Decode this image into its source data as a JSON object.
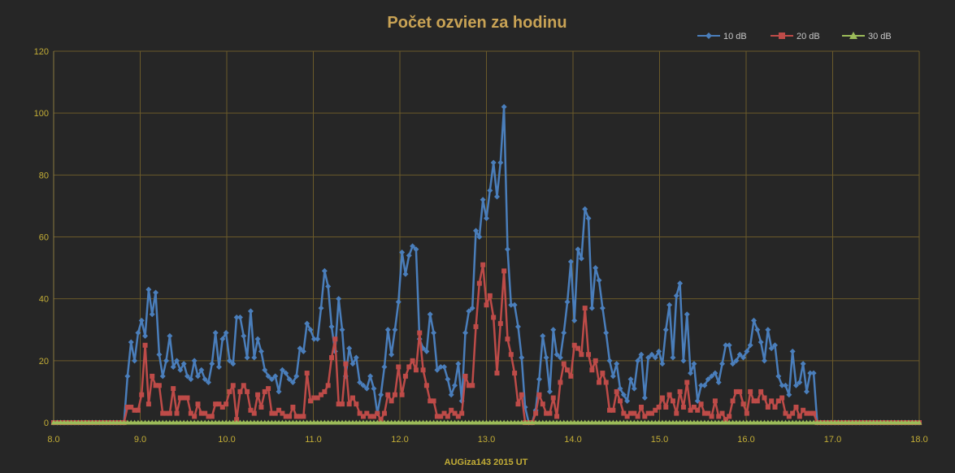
{
  "chart_data": {
    "type": "line",
    "title": "Počet ozvien za hodinu",
    "xlabel": "AUGiza143  2015  UT",
    "ylabel": "",
    "xlim": [
      8.0,
      18.0
    ],
    "ylim": [
      0,
      120
    ],
    "x_ticks": [
      "8.0",
      "9.0",
      "10.0",
      "11.0",
      "12.0",
      "13.0",
      "14.0",
      "15.0",
      "16.0",
      "17.0",
      "18.0"
    ],
    "y_ticks": [
      "0",
      "20",
      "40",
      "60",
      "80",
      "100",
      "120"
    ],
    "grid": true,
    "legend_position": "top-right",
    "x_start": 8.0,
    "x_step": 0.04166,
    "series": [
      {
        "name": "10 dB",
        "color": "#4a7ebb",
        "marker": "diamond",
        "values": [
          0,
          0,
          0,
          0,
          0,
          0,
          0,
          0,
          0,
          0,
          0,
          0,
          0,
          0,
          0,
          0,
          0,
          0,
          0,
          0,
          0,
          15,
          26,
          20,
          29,
          33,
          28,
          43,
          35,
          42,
          22,
          15,
          20,
          28,
          18,
          20,
          17,
          19,
          15,
          14,
          20,
          15,
          17,
          14,
          13,
          19,
          29,
          18,
          27,
          29,
          20,
          19,
          34,
          34,
          28,
          21,
          36,
          21,
          27,
          23,
          17,
          15,
          14,
          15,
          10,
          17,
          16,
          14,
          13,
          15,
          24,
          23,
          32,
          30,
          27,
          27,
          37,
          49,
          44,
          31,
          23,
          40,
          30,
          15,
          24,
          19,
          21,
          13,
          12,
          11,
          15,
          11,
          3,
          9,
          18,
          30,
          22,
          30,
          39,
          55,
          48,
          54,
          57,
          56,
          27,
          24,
          23,
          35,
          29,
          17,
          18,
          18,
          14,
          9,
          12,
          19,
          7,
          29,
          36,
          37,
          62,
          60,
          72,
          66,
          75,
          84,
          73,
          84,
          102,
          56,
          38,
          38,
          31,
          21,
          5,
          0,
          0,
          4,
          14,
          28,
          21,
          10,
          30,
          22,
          21,
          29,
          39,
          52,
          33,
          56,
          53,
          69,
          66,
          37,
          50,
          46,
          37,
          29,
          20,
          15,
          19,
          11,
          9,
          7,
          14,
          11,
          20,
          22,
          8,
          21,
          22,
          21,
          23,
          19,
          30,
          38,
          21,
          41,
          45,
          20,
          35,
          16,
          19,
          7,
          12,
          12,
          14,
          15,
          16,
          13,
          19,
          25,
          25,
          19,
          20,
          22,
          21,
          23,
          25,
          33,
          30,
          26,
          20,
          30,
          24,
          25,
          15,
          12,
          12,
          9,
          23,
          12,
          13,
          19,
          10,
          16,
          16,
          0,
          0,
          0,
          0,
          0,
          0,
          0,
          0,
          0,
          0,
          0,
          0,
          0,
          0,
          0,
          0,
          0,
          0,
          0,
          0,
          0,
          0,
          0,
          0,
          0,
          0,
          0,
          0,
          0,
          0
        ],
        "values_note": ""
      },
      {
        "name": "20 dB",
        "color": "#be4b48",
        "marker": "square",
        "values": [
          0,
          0,
          0,
          0,
          0,
          0,
          0,
          0,
          0,
          0,
          0,
          0,
          0,
          0,
          0,
          0,
          0,
          0,
          0,
          0,
          0,
          5,
          5,
          4,
          4,
          9,
          25,
          6,
          15,
          12,
          12,
          3,
          3,
          3,
          11,
          3,
          8,
          8,
          8,
          3,
          2,
          6,
          3,
          3,
          2,
          2,
          6,
          6,
          5,
          6,
          10,
          12,
          1,
          10,
          12,
          10,
          4,
          3,
          9,
          5,
          10,
          11,
          3,
          3,
          4,
          3,
          2,
          2,
          5,
          2,
          2,
          2,
          16,
          7,
          8,
          8,
          9,
          10,
          12,
          21,
          27,
          6,
          6,
          19,
          6,
          8,
          6,
          3,
          2,
          3,
          2,
          2,
          3,
          1,
          3,
          9,
          7,
          9,
          18,
          9,
          15,
          18,
          20,
          17,
          29,
          17,
          12,
          7,
          7,
          2,
          2,
          3,
          2,
          4,
          3,
          2,
          3,
          15,
          12,
          12,
          31,
          45,
          51,
          38,
          41,
          34,
          16,
          32,
          49,
          27,
          22,
          16,
          6,
          9,
          0,
          0,
          0,
          3,
          9,
          6,
          3,
          3,
          8,
          2,
          13,
          19,
          17,
          15,
          25,
          24,
          22,
          37,
          22,
          17,
          20,
          13,
          16,
          13,
          4,
          4,
          10,
          7,
          3,
          2,
          3,
          3,
          2,
          5,
          2,
          3,
          3,
          4,
          5,
          8,
          5,
          9,
          7,
          3,
          10,
          5,
          13,
          4,
          5,
          4,
          6,
          3,
          3,
          2,
          7,
          2,
          3,
          1,
          2,
          7,
          10,
          10,
          6,
          3,
          10,
          7,
          7,
          10,
          8,
          5,
          7,
          5,
          7,
          8,
          3,
          2,
          3,
          5,
          2,
          4,
          3,
          3,
          3,
          0,
          0,
          0,
          0,
          0,
          0,
          0,
          0,
          0,
          0,
          0,
          0,
          0,
          0,
          0,
          0,
          0,
          0,
          0,
          0,
          0,
          0,
          0,
          0,
          0,
          0,
          0,
          0,
          0,
          0
        ]
      },
      {
        "name": "30 dB",
        "color": "#9bbb59",
        "marker": "triangle",
        "values": "all-zero"
      }
    ]
  }
}
